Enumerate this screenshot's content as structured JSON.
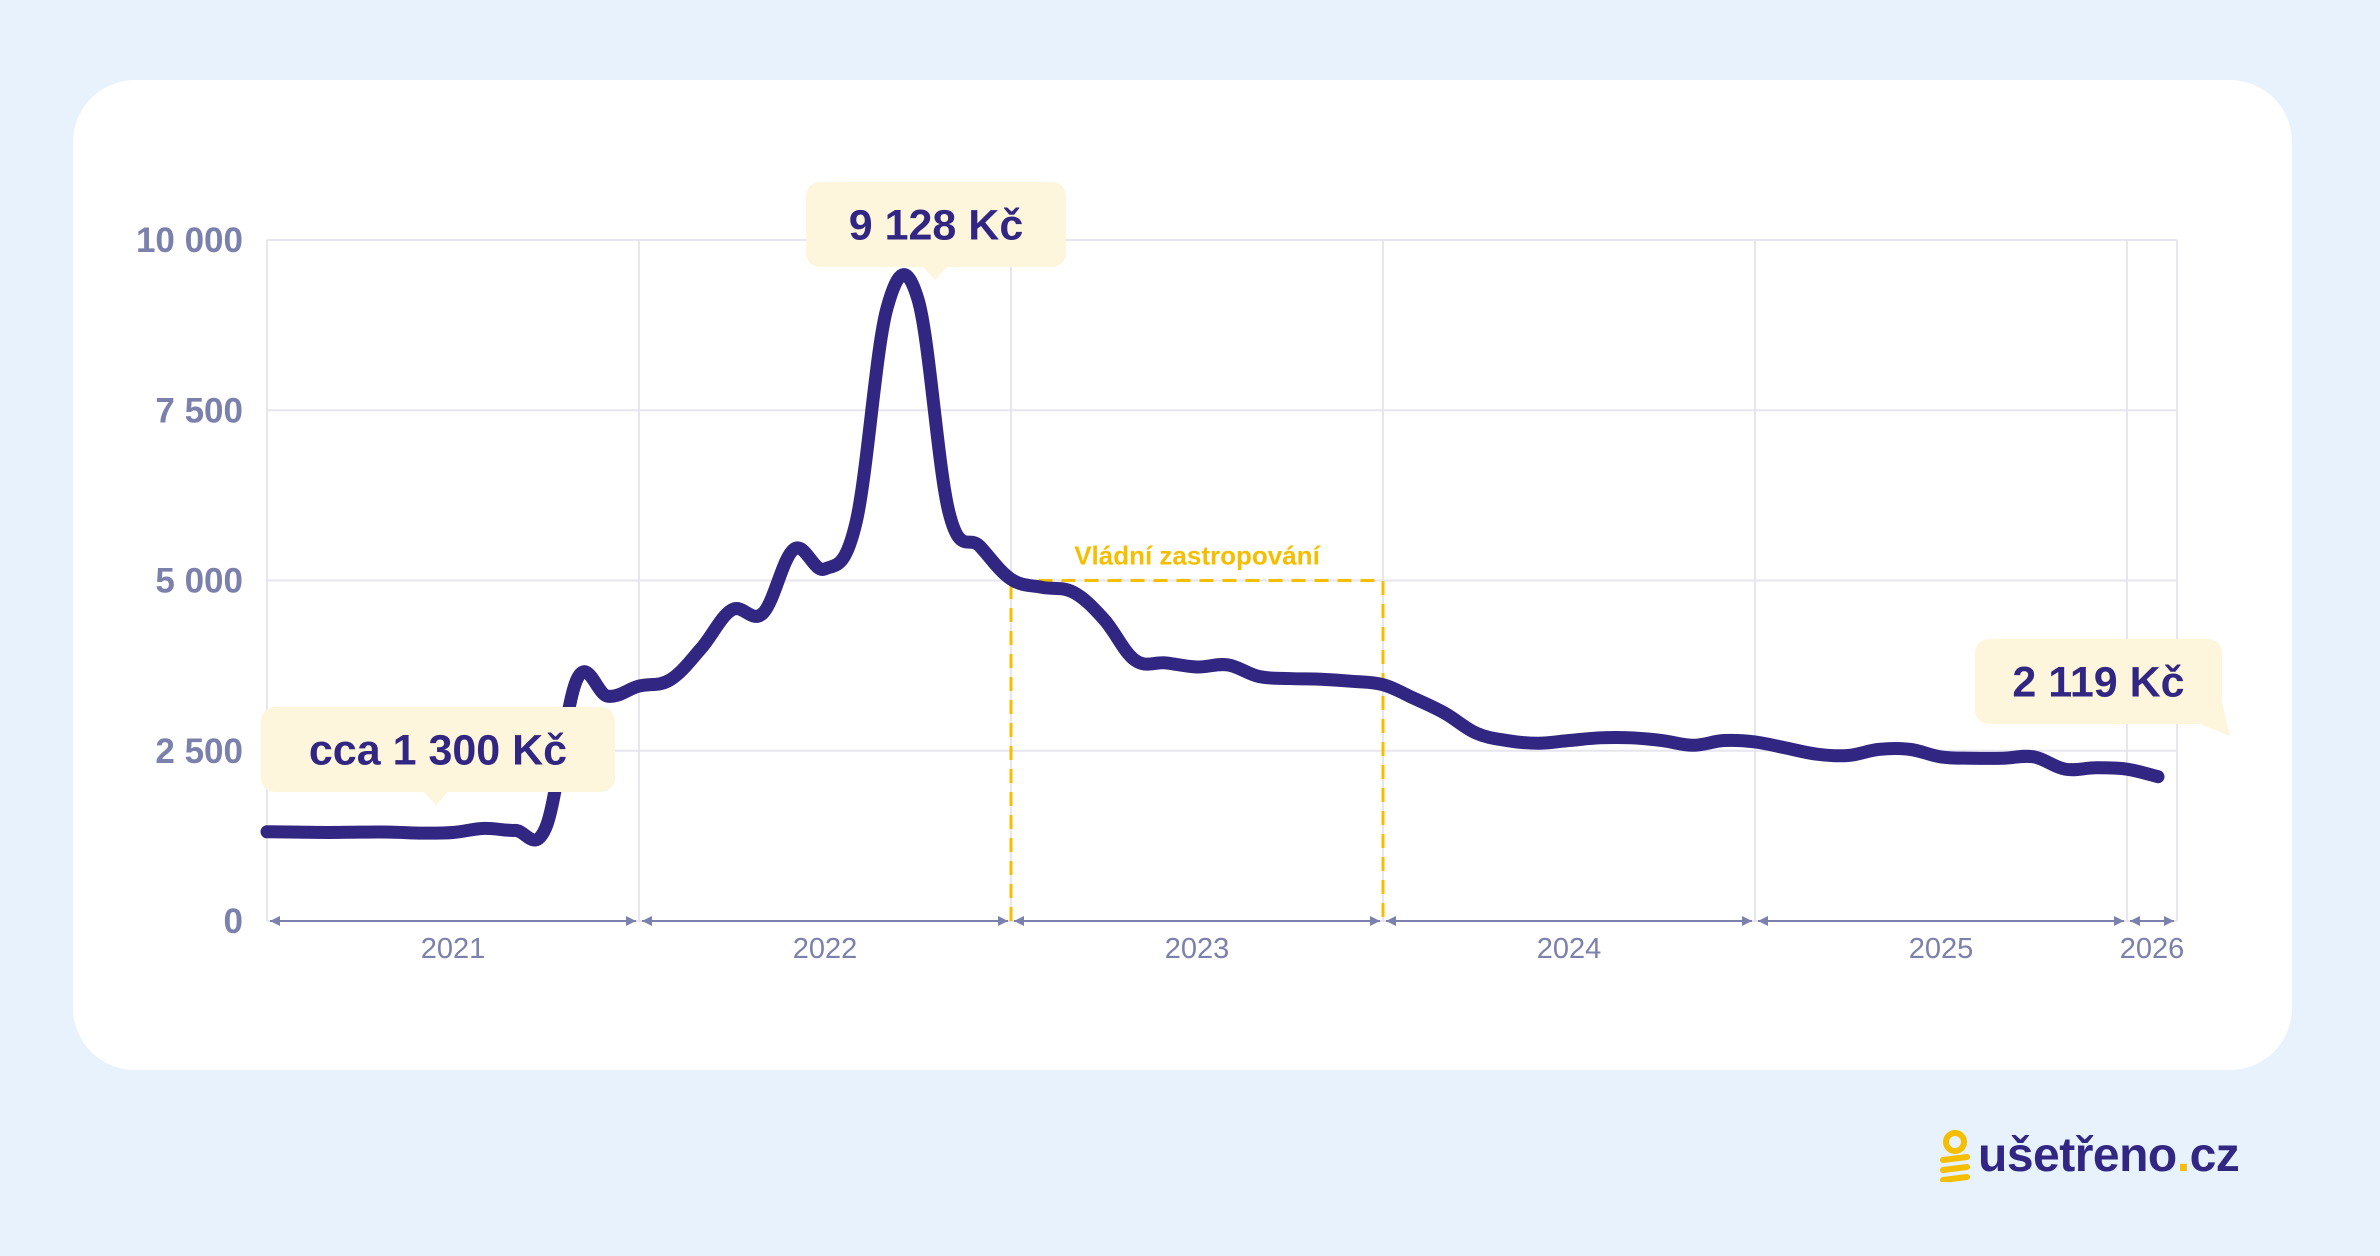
{
  "chart_data": {
    "type": "line",
    "title": "",
    "xlabel": "",
    "ylabel": "",
    "ylim": [
      0,
      10000
    ],
    "y_ticks": [
      {
        "value": 0,
        "label": "0"
      },
      {
        "value": 2500,
        "label": "2 500"
      },
      {
        "value": 5000,
        "label": "5 000"
      },
      {
        "value": 7500,
        "label": "7 500"
      },
      {
        "value": 10000,
        "label": "10 000"
      }
    ],
    "xlim": [
      "2021-01",
      "2026-02"
    ],
    "x_ticks": [
      "2021",
      "2022",
      "2023",
      "2024",
      "2025",
      "2026"
    ],
    "grid": true,
    "series": [
      {
        "color": "#312783",
        "points": [
          [
            "2021-01",
            1310
          ],
          [
            "2021-02",
            1305
          ],
          [
            "2021-03",
            1300
          ],
          [
            "2021-04",
            1305
          ],
          [
            "2021-05",
            1305
          ],
          [
            "2021-06",
            1290
          ],
          [
            "2021-07",
            1300
          ],
          [
            "2021-08",
            1360
          ],
          [
            "2021-09",
            1330
          ],
          [
            "2021-10",
            1380
          ],
          [
            "2021-11",
            3550
          ],
          [
            "2021-12",
            3300
          ],
          [
            "2022-01",
            3450
          ],
          [
            "2022-02",
            3540
          ],
          [
            "2022-03",
            4000
          ],
          [
            "2022-04",
            4570
          ],
          [
            "2022-05",
            4520
          ],
          [
            "2022-06",
            5460
          ],
          [
            "2022-07",
            5170
          ],
          [
            "2022-08",
            5850
          ],
          [
            "2022-09",
            9000
          ],
          [
            "2022-10",
            9128
          ],
          [
            "2022-11",
            6000
          ],
          [
            "2022-12",
            5500
          ],
          [
            "2023-01",
            5020
          ],
          [
            "2023-02",
            4900
          ],
          [
            "2023-03",
            4830
          ],
          [
            "2023-04",
            4430
          ],
          [
            "2023-05",
            3830
          ],
          [
            "2023-06",
            3790
          ],
          [
            "2023-07",
            3730
          ],
          [
            "2023-08",
            3760
          ],
          [
            "2023-09",
            3590
          ],
          [
            "2023-10",
            3560
          ],
          [
            "2023-11",
            3550
          ],
          [
            "2023-12",
            3520
          ],
          [
            "2024-01",
            3470
          ],
          [
            "2024-02",
            3270
          ],
          [
            "2024-03",
            3050
          ],
          [
            "2024-04",
            2760
          ],
          [
            "2024-05",
            2650
          ],
          [
            "2024-06",
            2610
          ],
          [
            "2024-07",
            2650
          ],
          [
            "2024-08",
            2690
          ],
          [
            "2024-09",
            2690
          ],
          [
            "2024-10",
            2650
          ],
          [
            "2024-11",
            2580
          ],
          [
            "2024-12",
            2650
          ],
          [
            "2025-01",
            2630
          ],
          [
            "2025-02",
            2540
          ],
          [
            "2025-03",
            2450
          ],
          [
            "2025-04",
            2430
          ],
          [
            "2025-05",
            2520
          ],
          [
            "2025-06",
            2520
          ],
          [
            "2025-07",
            2410
          ],
          [
            "2025-08",
            2390
          ],
          [
            "2025-09",
            2390
          ],
          [
            "2025-10",
            2410
          ],
          [
            "2025-11",
            2230
          ],
          [
            "2025-12",
            2250
          ],
          [
            "2026-01",
            2230
          ],
          [
            "2026-02",
            2119
          ]
        ]
      }
    ],
    "annotations": [
      {
        "text": "cca 1 300 Kč",
        "at": "2021-06",
        "value": 1300
      },
      {
        "text": "9 128 Kč",
        "at": "2022-10",
        "value": 9128
      },
      {
        "text": "2 119 Kč",
        "at": "2026-02",
        "value": 2119
      }
    ],
    "highlight": {
      "label": "Vládní zastropování",
      "from": "2023-01",
      "to": "2024-01",
      "value": 5000,
      "color": "#F5BE00"
    }
  },
  "colors": {
    "background": "#E8F2FD",
    "line": "#312783",
    "callout_bg": "#FDF5DC",
    "accent": "#F5BE00",
    "axis_text": "#7C80AC"
  },
  "logo": {
    "text": "ušetřeno",
    "dot": ".",
    "tld": "cz"
  }
}
